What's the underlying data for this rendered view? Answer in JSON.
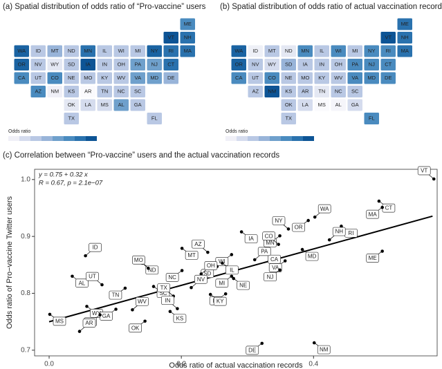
{
  "chart_data": [
    {
      "type": "choropleth",
      "title": "(a) Spatial distribution of odds ratio of “Pro-vaccine” users",
      "legend_title": "Odds ratio",
      "legend_colors": [
        "#f0f0f7",
        "#d5dcee",
        "#b9c8e4",
        "#98b4d9",
        "#6fa0cc",
        "#4a8bbf",
        "#2a72ae",
        "#0d5495"
      ],
      "states": [
        "ME",
        "VT",
        "NH",
        "WA",
        "ID",
        "MT",
        "ND",
        "MN",
        "IL",
        "WI",
        "MI",
        "NY",
        "RI",
        "MA",
        "OR",
        "NV",
        "WY",
        "SD",
        "IA",
        "IN",
        "OH",
        "PA",
        "NJ",
        "CT",
        "CA",
        "UT",
        "CO",
        "NE",
        "MO",
        "KY",
        "WV",
        "VA",
        "MD",
        "DE",
        "AZ",
        "NM",
        "KS",
        "AR",
        "TN",
        "NC",
        "SC",
        "OK",
        "LA",
        "MS",
        "AL",
        "GA",
        "TX",
        "FL"
      ],
      "colors": [
        "#4a8bbf",
        "#0d5495",
        "#2a72ae",
        "#1a63a2",
        "#b9c8e4",
        "#98b4d9",
        "#b9c8e4",
        "#2a72ae",
        "#b9c8e4",
        "#b9c8e4",
        "#b9c8e4",
        "#1a63a2",
        "#2a72ae",
        "#2a72ae",
        "#1a63a2",
        "#b9c8e4",
        "#e4e8f3",
        "#b9c8e4",
        "#0d5495",
        "#b9c8e4",
        "#b9c8e4",
        "#6fa0cc",
        "#6fa0cc",
        "#2a72ae",
        "#4a8bbf",
        "#b9c8e4",
        "#4a8bbf",
        "#b9c8e4",
        "#b9c8e4",
        "#b9c8e4",
        "#b9c8e4",
        "#6fa0cc",
        "#6fa0cc",
        "#98b4d9",
        "#4a8bbf",
        "#f0f0f7",
        "#b9c8e4",
        "#fafafd",
        "#b9c8e4",
        "#b9c8e4",
        "#b9c8e4",
        "#e4e8f3",
        "#d5dcee",
        "#d5dcee",
        "#6fa0cc",
        "#b9c8e4",
        "#b9c8e4",
        "#b9c8e4"
      ]
    },
    {
      "type": "choropleth",
      "title": "(b) Spatial distribution of odds ratio of actual vaccination records",
      "legend_title": "Odds ratio",
      "legend_colors": [
        "#f0f0f7",
        "#d5dcee",
        "#b9c8e4",
        "#98b4d9",
        "#6fa0cc",
        "#4a8bbf",
        "#2a72ae",
        "#0d5495"
      ],
      "states": [
        "ME",
        "VT",
        "NH",
        "WA",
        "ID",
        "MT",
        "ND",
        "MN",
        "IL",
        "WI",
        "MI",
        "NY",
        "RI",
        "MA",
        "OR",
        "NV",
        "WY",
        "SD",
        "IA",
        "IN",
        "OH",
        "PA",
        "NJ",
        "CT",
        "CA",
        "UT",
        "CO",
        "NE",
        "MO",
        "KY",
        "WV",
        "VA",
        "MD",
        "DE",
        "AZ",
        "NM",
        "KS",
        "AR",
        "TN",
        "NC",
        "SC",
        "OK",
        "LA",
        "MS",
        "AL",
        "GA",
        "TX",
        "FL"
      ],
      "colors": [
        "#2a72ae",
        "#0d5495",
        "#2a72ae",
        "#1a63a2",
        "#eef0f7",
        "#b9c8e4",
        "#e4e8f3",
        "#4a8bbf",
        "#b9c8e4",
        "#4a8bbf",
        "#b9c8e4",
        "#4a8bbf",
        "#4a8bbf",
        "#2a72ae",
        "#1a63a2",
        "#b9c8e4",
        "#d5dcee",
        "#98b4d9",
        "#b9c8e4",
        "#b9c8e4",
        "#b9c8e4",
        "#4a8bbf",
        "#4a8bbf",
        "#4a8bbf",
        "#4a8bbf",
        "#b9c8e4",
        "#4a8bbf",
        "#b9c8e4",
        "#b9c8e4",
        "#b9c8e4",
        "#b9c8e4",
        "#4a8bbf",
        "#4a8bbf",
        "#4a8bbf",
        "#b9c8e4",
        "#0d5495",
        "#b9c8e4",
        "#b9c8e4",
        "#e4e8f3",
        "#b9c8e4",
        "#b9c8e4",
        "#b9c8e4",
        "#d5dcee",
        "#fafafd",
        "#f5f5fa",
        "#d5dcee",
        "#b9c8e4",
        "#4a8bbf"
      ]
    },
    {
      "type": "scatter",
      "title": "(c) Correlation between “Pro-vaccine” users and the actual vaccination records",
      "xlabel": "Odds ratio of actual vaccination records",
      "ylabel": "Odds ratio of Pro−vaccine Twitter users",
      "annotations": [
        "y = 0.75 + 0.32 x",
        "R = 0.67, p = 2.1e−07"
      ],
      "xlim": [
        -0.022,
        0.587
      ],
      "ylim": [
        0.69,
        1.018
      ],
      "xticks": [
        {
          "value": 0,
          "label": "0.0"
        },
        {
          "value": 0.2,
          "label": "0.2"
        },
        {
          "value": 0.4,
          "label": "0.4"
        }
      ],
      "yticks": [
        {
          "value": 0.7,
          "label": "0.7"
        },
        {
          "value": 0.8,
          "label": "0.8"
        },
        {
          "value": 0.9,
          "label": "0.9"
        },
        {
          "value": 1,
          "label": "1.0"
        }
      ],
      "color": "#000000",
      "labels": [
        "VT",
        "CT",
        "MA",
        "WA",
        "OR",
        "RI",
        "NY",
        "IA",
        "MN",
        "NH",
        "ME",
        "MD",
        "CO",
        "CA",
        "WI",
        "ID",
        "VA",
        "MT",
        "AZ",
        "IL",
        "SD",
        "PA",
        "NJ",
        "ND",
        "MO",
        "AL",
        "NC",
        "OH",
        "MI",
        "NE",
        "UT",
        "SC",
        "TN",
        "NV",
        "FL",
        "KY",
        "TX",
        "WY",
        "GA",
        "WV",
        "LA",
        "MS",
        "IN",
        "KS",
        "OK",
        "AR",
        "DE",
        "NM"
      ],
      "x": [
        0.582,
        0.499,
        0.504,
        0.402,
        0.392,
        0.442,
        0.362,
        0.291,
        0.349,
        0.424,
        0.504,
        0.383,
        0.347,
        0.326,
        0.276,
        0.055,
        0.357,
        0.201,
        0.24,
        0.262,
        0.254,
        0.311,
        0.349,
        0.141,
        0.15,
        0.035,
        0.201,
        0.23,
        0.276,
        0.279,
        0.08,
        0.158,
        0.115,
        0.215,
        0.267,
        0.244,
        0.188,
        0.057,
        0.101,
        0.126,
        0.077,
        0.001,
        0.194,
        0.183,
        0.145,
        0.046,
        0.322,
        0.401
      ],
      "values": [
        1.001,
        0.962,
        0.951,
        0.934,
        0.928,
        0.918,
        0.913,
        0.908,
        0.901,
        0.894,
        0.874,
        0.877,
        0.886,
        0.872,
        0.868,
        0.866,
        0.857,
        0.879,
        0.872,
        0.853,
        0.847,
        0.859,
        0.841,
        0.853,
        0.844,
        0.83,
        0.84,
        0.834,
        0.83,
        0.826,
        0.815,
        0.812,
        0.809,
        0.81,
        0.799,
        0.798,
        0.795,
        0.777,
        0.772,
        0.771,
        0.762,
        0.763,
        0.773,
        0.768,
        0.751,
        0.733,
        0.712,
        0.713
      ],
      "fit": {
        "x": [
          0,
          0.58
        ],
        "values": [
          0.75,
          0.9356
        ]
      }
    }
  ]
}
